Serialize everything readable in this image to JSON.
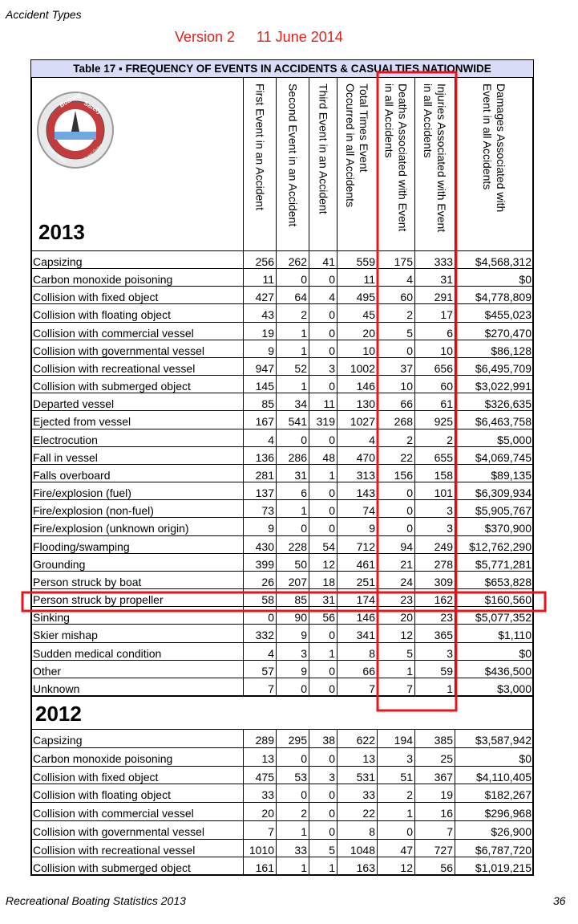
{
  "header": {
    "section": "Accident Types",
    "version": "Version 2",
    "date": "11 June 2014"
  },
  "table": {
    "title": "Table 17 ▪ FREQUENCY OF EVENTS IN ACCIDENTS & CASUALTIES NATIONWIDE",
    "logo": [
      "Boating",
      "Safety",
      "United States",
      "Coast Guard"
    ],
    "columns": [
      [
        "First Event in an Accident"
      ],
      [
        "Second Event in an Accident"
      ],
      [
        "Third Event in an Accident"
      ],
      [
        "Total Times Event",
        "Occurred in all Accidents"
      ],
      [
        "Deaths Associated with Event",
        "in all Accidents"
      ],
      [
        "Injuries Associated with Event",
        "in all Accidents"
      ],
      [
        "Damages Associated with",
        "Event in all Accidents"
      ]
    ],
    "sections": [
      {
        "year": "2013",
        "rows": [
          [
            "Capsizing",
            256,
            262,
            41,
            559,
            175,
            333,
            "$4,568,312"
          ],
          [
            "Carbon monoxide poisoning",
            11,
            0,
            0,
            11,
            4,
            31,
            "$0"
          ],
          [
            "Collision with fixed object",
            427,
            64,
            4,
            495,
            60,
            291,
            "$4,778,809"
          ],
          [
            "Collision with floating object",
            43,
            2,
            0,
            45,
            2,
            17,
            "$455,023"
          ],
          [
            "Collision with commercial vessel",
            19,
            1,
            0,
            20,
            5,
            6,
            "$270,470"
          ],
          [
            "Collision with governmental vessel",
            9,
            1,
            0,
            10,
            0,
            10,
            "$86,128"
          ],
          [
            "Collision with recreational vessel",
            947,
            52,
            3,
            1002,
            37,
            656,
            "$6,495,709"
          ],
          [
            "Collision with submerged object",
            145,
            1,
            0,
            146,
            10,
            60,
            "$3,022,991"
          ],
          [
            "Departed vessel",
            85,
            34,
            11,
            130,
            66,
            61,
            "$326,635"
          ],
          [
            "Ejected from vessel",
            167,
            541,
            319,
            1027,
            268,
            925,
            "$6,463,758"
          ],
          [
            "Electrocution",
            4,
            0,
            0,
            4,
            2,
            2,
            "$5,000"
          ],
          [
            "Fall in vessel",
            136,
            286,
            48,
            470,
            22,
            655,
            "$4,069,745"
          ],
          [
            "Falls overboard",
            281,
            31,
            1,
            313,
            156,
            158,
            "$89,135"
          ],
          [
            "Fire/explosion (fuel)",
            137,
            6,
            0,
            143,
            0,
            101,
            "$6,309,934"
          ],
          [
            "Fire/explosion (non-fuel)",
            73,
            1,
            0,
            74,
            0,
            3,
            "$5,905,767"
          ],
          [
            "Fire/explosion (unknown origin)",
            9,
            0,
            0,
            9,
            0,
            3,
            "$370,900"
          ],
          [
            "Flooding/swamping",
            430,
            228,
            54,
            712,
            94,
            249,
            "$12,762,290"
          ],
          [
            "Grounding",
            399,
            50,
            12,
            461,
            21,
            278,
            "$5,771,281"
          ],
          [
            "Person struck by boat",
            26,
            207,
            18,
            251,
            24,
            309,
            "$653,828"
          ],
          [
            "Person struck by propeller",
            58,
            85,
            31,
            174,
            23,
            162,
            "$160,560"
          ],
          [
            "Sinking",
            0,
            90,
            56,
            146,
            20,
            23,
            "$5,077,352"
          ],
          [
            "Skier mishap",
            332,
            9,
            0,
            341,
            12,
            365,
            "$1,110"
          ],
          [
            "Sudden medical condition",
            4,
            3,
            1,
            8,
            5,
            3,
            "$0"
          ],
          [
            "Other",
            57,
            9,
            0,
            66,
            1,
            59,
            "$436,500"
          ],
          [
            "Unknown",
            7,
            0,
            0,
            7,
            7,
            1,
            "$3,000"
          ]
        ]
      },
      {
        "year": "2012",
        "rows": [
          [
            "Capsizing",
            289,
            295,
            38,
            622,
            194,
            385,
            "$3,587,942"
          ],
          [
            "Carbon monoxide poisoning",
            13,
            0,
            0,
            13,
            3,
            25,
            "$0"
          ],
          [
            "Collision with fixed object",
            475,
            53,
            3,
            531,
            51,
            367,
            "$4,110,405"
          ],
          [
            "Collision with floating object",
            33,
            0,
            0,
            33,
            2,
            19,
            "$182,267"
          ],
          [
            "Collision with commercial vessel",
            20,
            2,
            0,
            22,
            1,
            16,
            "$296,968"
          ],
          [
            "Collision with governmental vessel",
            7,
            1,
            0,
            8,
            0,
            7,
            "$26,900"
          ],
          [
            "Collision with recreational vessel",
            1010,
            33,
            5,
            1048,
            47,
            727,
            "$6,787,720"
          ],
          [
            "Collision with submerged object",
            161,
            1,
            1,
            163,
            12,
            56,
            "$1,019,215"
          ]
        ]
      }
    ]
  },
  "footer": {
    "left": "Recreational Boating Statistics 2013",
    "page": "36"
  }
}
